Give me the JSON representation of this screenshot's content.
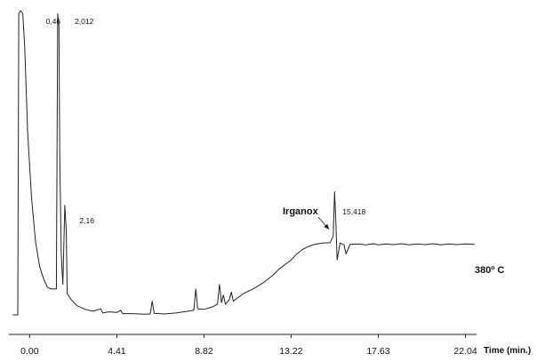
{
  "chart_data": {
    "type": "line",
    "xlabel": "Time (min.)",
    "x_ticks": [
      0.0,
      4.41,
      8.82,
      13.22,
      17.63,
      22.04
    ],
    "x_tick_labels": [
      "0.00",
      "4.41",
      "8.82",
      "13.22",
      "17.63",
      "22.04"
    ],
    "xlim": [
      -1.05,
      22.6
    ],
    "ylim": [
      0,
      1
    ],
    "grid": false,
    "line_color": "#222222",
    "peak_labels": [
      {
        "x": 0.46,
        "text": "0,46"
      },
      {
        "x": 2.012,
        "text": "2,012"
      },
      {
        "x": 2.16,
        "text": "2,16"
      },
      {
        "x": 15.418,
        "text": "15,418"
      }
    ],
    "annotations": [
      {
        "text": "Irganox",
        "target_x": 15.418
      },
      {
        "text": "380º C"
      }
    ],
    "series": [
      {
        "points": [
          [
            -0.85,
            0.0
          ],
          [
            -0.6,
            0.0
          ],
          [
            -0.55,
            0.99
          ],
          [
            -0.45,
            1.0
          ],
          [
            -0.35,
            0.99
          ],
          [
            -0.25,
            0.88
          ],
          [
            -0.1,
            0.6
          ],
          [
            0.1,
            0.38
          ],
          [
            0.3,
            0.24
          ],
          [
            0.5,
            0.16
          ],
          [
            0.7,
            0.12
          ],
          [
            0.9,
            0.09
          ],
          [
            1.1,
            0.085
          ],
          [
            1.35,
            0.085
          ],
          [
            1.42,
            0.99
          ],
          [
            1.48,
            0.95
          ],
          [
            1.52,
            0.52
          ],
          [
            1.6,
            0.2
          ],
          [
            1.68,
            0.1
          ],
          [
            1.78,
            0.36
          ],
          [
            1.85,
            0.28
          ],
          [
            1.9,
            0.07
          ],
          [
            2.1,
            0.05
          ],
          [
            2.4,
            0.03
          ],
          [
            2.8,
            0.018
          ],
          [
            3.2,
            0.012
          ],
          [
            3.6,
            0.02
          ],
          [
            3.7,
            0.006
          ],
          [
            4.0,
            0.01
          ],
          [
            4.41,
            0.008
          ],
          [
            4.6,
            0.015
          ],
          [
            4.7,
            0.004
          ],
          [
            5.2,
            0.004
          ],
          [
            5.8,
            0.002
          ],
          [
            6.1,
            0.003
          ],
          [
            6.2,
            0.045
          ],
          [
            6.3,
            0.005
          ],
          [
            6.8,
            0.003
          ],
          [
            7.4,
            0.006
          ],
          [
            8.0,
            0.012
          ],
          [
            8.3,
            0.015
          ],
          [
            8.4,
            0.085
          ],
          [
            8.5,
            0.02
          ],
          [
            8.82,
            0.018
          ],
          [
            9.2,
            0.025
          ],
          [
            9.5,
            0.035
          ],
          [
            9.6,
            0.1
          ],
          [
            9.7,
            0.04
          ],
          [
            9.8,
            0.065
          ],
          [
            9.9,
            0.035
          ],
          [
            10.1,
            0.05
          ],
          [
            10.2,
            0.075
          ],
          [
            10.3,
            0.045
          ],
          [
            10.8,
            0.07
          ],
          [
            11.3,
            0.085
          ],
          [
            11.8,
            0.105
          ],
          [
            12.3,
            0.13
          ],
          [
            12.6,
            0.15
          ],
          [
            12.9,
            0.165
          ],
          [
            13.22,
            0.18
          ],
          [
            13.5,
            0.2
          ],
          [
            13.8,
            0.215
          ],
          [
            14.1,
            0.225
          ],
          [
            14.4,
            0.232
          ],
          [
            14.8,
            0.236
          ],
          [
            15.2,
            0.237
          ],
          [
            15.35,
            0.26
          ],
          [
            15.418,
            0.405
          ],
          [
            15.48,
            0.32
          ],
          [
            15.55,
            0.18
          ],
          [
            15.7,
            0.236
          ],
          [
            15.9,
            0.23
          ],
          [
            16.0,
            0.2
          ],
          [
            16.2,
            0.232
          ],
          [
            16.6,
            0.233
          ],
          [
            17.0,
            0.23
          ],
          [
            17.4,
            0.234
          ],
          [
            17.63,
            0.23
          ],
          [
            18.0,
            0.233
          ],
          [
            18.4,
            0.231
          ],
          [
            18.8,
            0.234
          ],
          [
            19.2,
            0.23
          ],
          [
            19.6,
            0.233
          ],
          [
            20.0,
            0.231
          ],
          [
            20.4,
            0.234
          ],
          [
            20.8,
            0.23
          ],
          [
            21.2,
            0.233
          ],
          [
            21.6,
            0.231
          ],
          [
            22.04,
            0.233
          ],
          [
            22.5,
            0.232
          ]
        ]
      }
    ]
  }
}
